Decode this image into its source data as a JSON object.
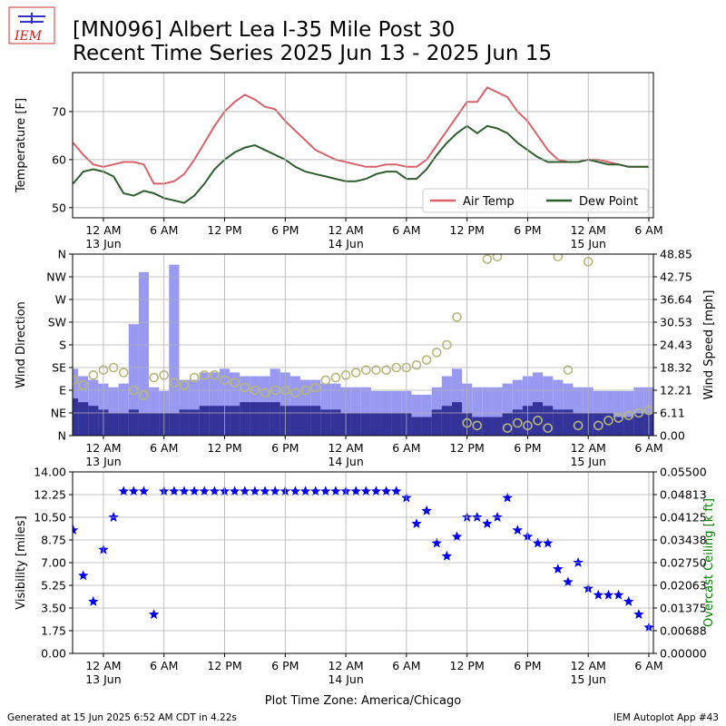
{
  "header": {
    "logo": "IEM",
    "title": "[MN096] Albert Lea I-35 Mile Post 30",
    "subtitle": "Recent Time Series 2025 Jun 13 - 2025 Jun 15"
  },
  "footer": {
    "left": "Generated at 15 Jun 2025 6:52 AM CDT in 4.22s",
    "right": "IEM Autoplot App #43"
  },
  "time_axis": {
    "xlabel": "Plot Time Zone: America/Chicago",
    "xlim": [
      "2025-06-12 20:57",
      "2025-06-15 06:27"
    ],
    "xticks": [
      {
        "value": "2025-06-13 00:00",
        "label": "12 AM\n13 Jun"
      },
      {
        "value": "2025-06-13 06:00",
        "label": "6 AM"
      },
      {
        "value": "2025-06-13 12:00",
        "label": "12 PM"
      },
      {
        "value": "2025-06-13 18:00",
        "label": "6 PM"
      },
      {
        "value": "2025-06-14 00:00",
        "label": "12 AM\n14 Jun"
      },
      {
        "value": "2025-06-14 06:00",
        "label": "6 AM"
      },
      {
        "value": "2025-06-14 12:00",
        "label": "12 PM"
      },
      {
        "value": "2025-06-14 18:00",
        "label": "6 PM"
      },
      {
        "value": "2025-06-15 00:00",
        "label": "12 AM\n15 Jun"
      },
      {
        "value": "2025-06-15 06:00",
        "label": "6 AM"
      }
    ]
  },
  "chart_data": [
    {
      "type": "line",
      "ylabel": "Temperature [F]",
      "ylim": [
        47.9,
        78.1
      ],
      "yticks": [
        50,
        60,
        70
      ],
      "grid": true,
      "legend": "lower right",
      "x": [
        "2025-06-12 21:00",
        "2025-06-12 22:00",
        "2025-06-12 23:00",
        "2025-06-13 00:00",
        "2025-06-13 01:00",
        "2025-06-13 02:00",
        "2025-06-13 03:00",
        "2025-06-13 04:00",
        "2025-06-13 05:00",
        "2025-06-13 06:00",
        "2025-06-13 07:00",
        "2025-06-13 08:00",
        "2025-06-13 09:00",
        "2025-06-13 10:00",
        "2025-06-13 11:00",
        "2025-06-13 12:00",
        "2025-06-13 13:00",
        "2025-06-13 14:00",
        "2025-06-13 15:00",
        "2025-06-13 16:00",
        "2025-06-13 17:00",
        "2025-06-13 18:00",
        "2025-06-13 19:00",
        "2025-06-13 20:00",
        "2025-06-13 21:00",
        "2025-06-13 22:00",
        "2025-06-13 23:00",
        "2025-06-14 00:00",
        "2025-06-14 01:00",
        "2025-06-14 02:00",
        "2025-06-14 03:00",
        "2025-06-14 04:00",
        "2025-06-14 05:00",
        "2025-06-14 06:00",
        "2025-06-14 07:00",
        "2025-06-14 08:00",
        "2025-06-14 09:00",
        "2025-06-14 10:00",
        "2025-06-14 11:00",
        "2025-06-14 12:00",
        "2025-06-14 13:00",
        "2025-06-14 14:00",
        "2025-06-14 15:00",
        "2025-06-14 16:00",
        "2025-06-14 17:00",
        "2025-06-14 18:00",
        "2025-06-14 19:00",
        "2025-06-14 20:00",
        "2025-06-14 21:00",
        "2025-06-14 22:00",
        "2025-06-14 23:00",
        "2025-06-15 00:00",
        "2025-06-15 01:00",
        "2025-06-15 02:00",
        "2025-06-15 03:00",
        "2025-06-15 04:00",
        "2025-06-15 05:00",
        "2025-06-15 06:00"
      ],
      "series": [
        {
          "name": "Air Temp",
          "color": "#d9626a",
          "values": [
            63.5,
            61,
            59,
            58.5,
            59,
            59.5,
            59.5,
            59,
            55,
            55,
            55.5,
            57,
            60,
            63.5,
            67,
            70,
            72,
            73.5,
            72.5,
            71,
            70.5,
            68,
            66,
            64,
            62,
            61,
            60,
            59.5,
            59,
            58.5,
            58.5,
            59,
            59,
            58.5,
            58.5,
            60,
            63,
            66,
            69,
            72,
            72,
            75,
            74,
            73,
            70,
            68,
            65,
            62,
            60,
            59.5,
            59.5,
            60,
            60,
            59.5,
            59,
            58.5,
            58.5,
            58.5
          ]
        },
        {
          "name": "Dew Point",
          "color": "#2e5e2e",
          "values": [
            55,
            57.5,
            58,
            57.5,
            56.5,
            53,
            52.5,
            53.5,
            53,
            52,
            51.5,
            51,
            52.5,
            55,
            58,
            60,
            61.5,
            62.5,
            63,
            62,
            61,
            60,
            58.5,
            57.5,
            57,
            56.5,
            56,
            55.5,
            55.5,
            56,
            57,
            57.5,
            57.5,
            56,
            56,
            58,
            61,
            63.5,
            65.5,
            67,
            65.5,
            67,
            66.5,
            65.5,
            63.5,
            62,
            60.5,
            59.5,
            59.5,
            59.5,
            59.5,
            60,
            59.5,
            59,
            59,
            58.5,
            58.5,
            58.5
          ]
        }
      ]
    },
    {
      "type": "bar",
      "ylabel": "Wind Direction",
      "ylim": [
        0,
        360
      ],
      "yticks": [
        {
          "value": 0,
          "label": "N"
        },
        {
          "value": 45,
          "label": "NE"
        },
        {
          "value": 90,
          "label": "E"
        },
        {
          "value": 135,
          "label": "SE"
        },
        {
          "value": 180,
          "label": "S"
        },
        {
          "value": 225,
          "label": "SW"
        },
        {
          "value": 270,
          "label": "W"
        },
        {
          "value": 315,
          "label": "NW"
        },
        {
          "value": 360,
          "label": "N"
        }
      ],
      "y2label": "Wind Speed [mph]",
      "y2lim": [
        0,
        48.85
      ],
      "y2ticks": [
        {
          "value": 0,
          "label": "0.00"
        },
        {
          "value": 6.11,
          "label": "6.11"
        },
        {
          "value": 12.21,
          "label": "12.21"
        },
        {
          "value": 18.32,
          "label": "18.32"
        },
        {
          "value": 24.43,
          "label": "24.43"
        },
        {
          "value": 30.53,
          "label": "30.53"
        },
        {
          "value": 36.64,
          "label": "36.64"
        },
        {
          "value": 42.75,
          "label": "42.75"
        },
        {
          "value": 48.85,
          "label": "48.85"
        }
      ],
      "grid": true,
      "x": [
        "2025-06-12 21:00",
        "2025-06-12 22:00",
        "2025-06-12 23:00",
        "2025-06-13 00:00",
        "2025-06-13 01:00",
        "2025-06-13 02:00",
        "2025-06-13 03:00",
        "2025-06-13 04:00",
        "2025-06-13 05:00",
        "2025-06-13 06:00",
        "2025-06-13 07:00",
        "2025-06-13 08:00",
        "2025-06-13 09:00",
        "2025-06-13 10:00",
        "2025-06-13 11:00",
        "2025-06-13 12:00",
        "2025-06-13 13:00",
        "2025-06-13 14:00",
        "2025-06-13 15:00",
        "2025-06-13 16:00",
        "2025-06-13 17:00",
        "2025-06-13 18:00",
        "2025-06-13 19:00",
        "2025-06-13 20:00",
        "2025-06-13 21:00",
        "2025-06-13 22:00",
        "2025-06-13 23:00",
        "2025-06-14 00:00",
        "2025-06-14 01:00",
        "2025-06-14 02:00",
        "2025-06-14 03:00",
        "2025-06-14 04:00",
        "2025-06-14 05:00",
        "2025-06-14 06:00",
        "2025-06-14 07:00",
        "2025-06-14 08:00",
        "2025-06-14 09:00",
        "2025-06-14 10:00",
        "2025-06-14 11:00",
        "2025-06-14 12:00",
        "2025-06-14 13:00",
        "2025-06-14 14:00",
        "2025-06-14 15:00",
        "2025-06-14 16:00",
        "2025-06-14 17:00",
        "2025-06-14 18:00",
        "2025-06-14 19:00",
        "2025-06-14 20:00",
        "2025-06-14 21:00",
        "2025-06-14 22:00",
        "2025-06-14 23:00",
        "2025-06-15 00:00",
        "2025-06-15 01:00",
        "2025-06-15 02:00",
        "2025-06-15 03:00",
        "2025-06-15 04:00",
        "2025-06-15 05:00",
        "2025-06-15 06:00"
      ],
      "series": [
        {
          "type": "bar",
          "axis": "y2",
          "color": "#9999f2",
          "values": [
            18,
            16,
            15,
            14,
            13,
            14,
            30,
            44,
            13,
            12,
            46,
            15,
            15,
            17,
            17,
            18,
            17,
            16,
            16,
            16,
            18,
            17,
            16,
            15,
            15,
            14,
            14,
            13,
            13,
            13,
            12,
            12,
            12,
            12,
            11,
            11,
            13,
            16,
            18,
            14,
            13,
            13,
            13,
            14,
            15,
            16,
            17,
            16,
            15,
            14,
            13,
            13,
            12,
            12,
            12,
            12,
            13,
            13
          ]
        },
        {
          "type": "bar",
          "axis": "y2",
          "color": "#333399",
          "values": [
            10,
            9,
            8,
            7,
            6,
            6,
            7,
            6,
            6,
            6,
            6,
            7,
            7,
            8,
            8,
            8,
            8,
            9,
            9,
            9,
            9,
            8,
            8,
            8,
            8,
            7,
            7,
            6,
            6,
            6,
            6,
            6,
            6,
            6,
            5,
            5,
            7,
            8,
            9,
            6,
            5,
            5,
            5,
            6,
            7,
            8,
            9,
            8,
            7,
            7,
            6,
            6,
            6,
            6,
            5,
            5,
            6,
            6
          ]
        },
        {
          "type": "scatter",
          "color": "#b5b878",
          "values": [
            110,
            100,
            120,
            130,
            135,
            125,
            90,
            80,
            115,
            120,
            105,
            100,
            115,
            120,
            120,
            110,
            105,
            95,
            90,
            85,
            90,
            90,
            85,
            90,
            95,
            110,
            115,
            120,
            125,
            130,
            130,
            130,
            135,
            135,
            140,
            150,
            165,
            180,
            235,
            25,
            20,
            350,
            355,
            15,
            25,
            20,
            30,
            15,
            355,
            130,
            20,
            345,
            20,
            30,
            35,
            40,
            45,
            50
          ]
        }
      ]
    },
    {
      "type": "scatter",
      "marker": "star",
      "ylabel": "Visibility [miles]",
      "ylim": [
        0,
        14
      ],
      "yticks": [
        {
          "value": 0,
          "label": "0.00"
        },
        {
          "value": 1.75,
          "label": "1.75"
        },
        {
          "value": 3.5,
          "label": "3.50"
        },
        {
          "value": 5.25,
          "label": "5.25"
        },
        {
          "value": 7,
          "label": "7.00"
        },
        {
          "value": 8.75,
          "label": "8.75"
        },
        {
          "value": 10.5,
          "label": "10.50"
        },
        {
          "value": 12.25,
          "label": "12.25"
        },
        {
          "value": 14,
          "label": "14.00"
        }
      ],
      "y2label": "Overcast Ceiling [k ft]",
      "y2color": "#008000",
      "y2lim": [
        0,
        0.055
      ],
      "y2ticks": [
        {
          "value": 0,
          "label": "0.00000"
        },
        {
          "value": 0.006875,
          "label": "0.00688"
        },
        {
          "value": 0.01375,
          "label": "0.01375"
        },
        {
          "value": 0.020625,
          "label": "0.02063"
        },
        {
          "value": 0.0275,
          "label": "0.02750"
        },
        {
          "value": 0.034375,
          "label": "0.03438"
        },
        {
          "value": 0.04125,
          "label": "0.04125"
        },
        {
          "value": 0.048125,
          "label": "0.04813"
        },
        {
          "value": 0.055,
          "label": "0.05500"
        }
      ],
      "grid": true,
      "x": [
        "2025-06-12 21:00",
        "2025-06-12 22:00",
        "2025-06-12 23:00",
        "2025-06-13 00:00",
        "2025-06-13 01:00",
        "2025-06-13 02:00",
        "2025-06-13 03:00",
        "2025-06-13 04:00",
        "2025-06-13 05:00",
        "2025-06-13 06:00",
        "2025-06-13 07:00",
        "2025-06-13 08:00",
        "2025-06-13 09:00",
        "2025-06-13 10:00",
        "2025-06-13 11:00",
        "2025-06-13 12:00",
        "2025-06-13 13:00",
        "2025-06-13 14:00",
        "2025-06-13 15:00",
        "2025-06-13 16:00",
        "2025-06-13 17:00",
        "2025-06-13 18:00",
        "2025-06-13 19:00",
        "2025-06-13 20:00",
        "2025-06-13 21:00",
        "2025-06-13 22:00",
        "2025-06-13 23:00",
        "2025-06-14 00:00",
        "2025-06-14 01:00",
        "2025-06-14 02:00",
        "2025-06-14 03:00",
        "2025-06-14 04:00",
        "2025-06-14 05:00",
        "2025-06-14 06:00",
        "2025-06-14 07:00",
        "2025-06-14 08:00",
        "2025-06-14 09:00",
        "2025-06-14 10:00",
        "2025-06-14 11:00",
        "2025-06-14 12:00",
        "2025-06-14 13:00",
        "2025-06-14 14:00",
        "2025-06-14 15:00",
        "2025-06-14 16:00",
        "2025-06-14 17:00",
        "2025-06-14 18:00",
        "2025-06-14 19:00",
        "2025-06-14 20:00",
        "2025-06-14 21:00",
        "2025-06-14 22:00",
        "2025-06-14 23:00",
        "2025-06-15 00:00",
        "2025-06-15 01:00",
        "2025-06-15 02:00",
        "2025-06-15 03:00",
        "2025-06-15 04:00",
        "2025-06-15 05:00",
        "2025-06-15 06:00"
      ],
      "series": [
        {
          "color": "#0000ee",
          "values": [
            9.5,
            6,
            4,
            8,
            10.5,
            12.5,
            12.5,
            12.5,
            3,
            12.5,
            12.5,
            12.5,
            12.5,
            12.5,
            12.5,
            12.5,
            12.5,
            12.5,
            12.5,
            12.5,
            12.5,
            12.5,
            12.5,
            12.5,
            12.5,
            12.5,
            12.5,
            12.5,
            12.5,
            12.5,
            12.5,
            12.5,
            12.5,
            12,
            10,
            11,
            8.5,
            7.5,
            9,
            10.5,
            10.5,
            10,
            10.5,
            12,
            9.5,
            9,
            8.5,
            8.5,
            6.5,
            5.5,
            7,
            5,
            4.5,
            4.5,
            4.5,
            4,
            3,
            2
          ]
        }
      ]
    }
  ]
}
